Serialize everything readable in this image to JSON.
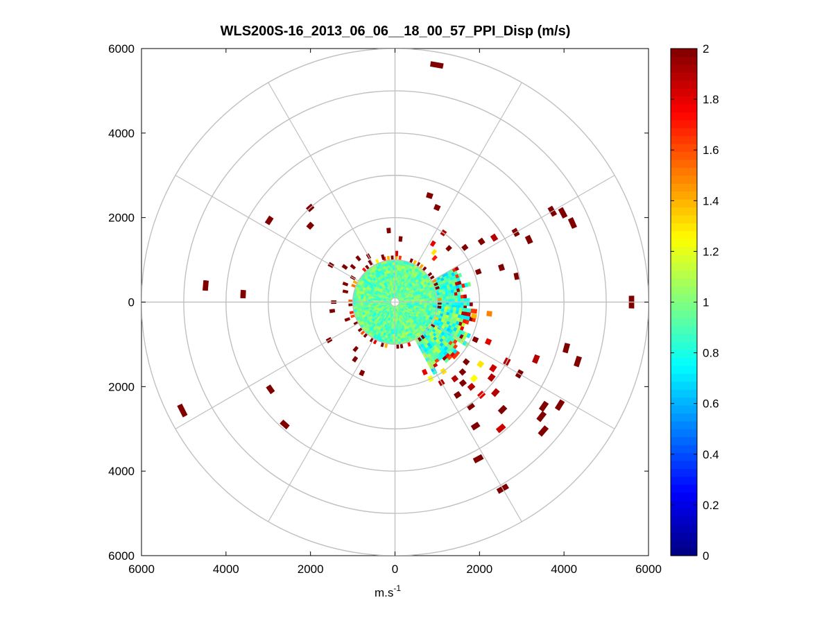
{
  "chart_data": {
    "type": "heatmap",
    "subtype": "polar-ppi",
    "title": "WLS200S-16_2013_06_06__18_00_57_PPI_Disp (m/s)",
    "xlabel": "m.s",
    "xlabel_superscript": "-1",
    "ylabel": "",
    "xlim": [
      -6000,
      6000
    ],
    "ylim": [
      -6000,
      6000
    ],
    "x_ticks": [
      -6000,
      -4000,
      -2000,
      0,
      2000,
      4000,
      6000
    ],
    "x_tick_labels": [
      "6000",
      "4000",
      "2000",
      "0",
      "2000",
      "4000",
      "6000"
    ],
    "y_ticks": [
      6000,
      4000,
      2000,
      0,
      -2000,
      -4000,
      -6000
    ],
    "y_tick_labels": [
      "6000",
      "4000",
      "2000",
      "0",
      "2000",
      "4000",
      "6000"
    ],
    "range_rings": [
      1000,
      2000,
      3000,
      4000,
      5000,
      6000
    ],
    "spokes_deg": [
      0,
      30,
      60,
      90,
      120,
      150,
      180,
      210,
      240,
      270,
      300,
      330
    ],
    "colorbar": {
      "min": 0,
      "max": 2,
      "colormap": "jet",
      "ticks": [
        0,
        0.2,
        0.4,
        0.6,
        0.8,
        1,
        1.2,
        1.4,
        1.6,
        1.8,
        2
      ],
      "tick_labels": [
        "0",
        "0.2",
        "0.4",
        "0.6",
        "0.8",
        "1",
        "1.2",
        "1.4",
        "1.6",
        "1.8",
        "2"
      ]
    },
    "inner_region": {
      "r_min": 100,
      "r_max": 1000,
      "value_base": 0.95,
      "value_spread": 0.15
    },
    "blob_east": {
      "az_min": 60,
      "az_max": 95,
      "r_min": 1000,
      "r_max": 1800,
      "value_base": 0.85,
      "value_spread": 0.2
    },
    "blob_southeast": {
      "az_min": 95,
      "az_max": 150,
      "r_min": 900,
      "r_max": 2000,
      "value_base": 0.9,
      "value_spread": 0.25
    },
    "cells": [
      {
        "az": 10,
        "r": 5700,
        "v": 2
      },
      {
        "az": 18,
        "r": 2650,
        "v": 2
      },
      {
        "az": 24,
        "r": 2450,
        "v": 2
      },
      {
        "az": 35,
        "r": 2000,
        "v": 1.9
      },
      {
        "az": 33,
        "r": 1650,
        "v": 1.8
      },
      {
        "az": 38,
        "r": 1500,
        "v": 1.3
      },
      {
        "az": 42,
        "r": 1400,
        "v": 1.7
      },
      {
        "az": 45,
        "r": 1800,
        "v": 2
      },
      {
        "az": 52,
        "r": 2100,
        "v": 2
      },
      {
        "az": 55,
        "r": 2500,
        "v": 2
      },
      {
        "az": 57,
        "r": 2800,
        "v": 1.9
      },
      {
        "az": 60,
        "r": 3300,
        "v": 2
      },
      {
        "az": 60,
        "r": 4300,
        "v": 2
      },
      {
        "az": 62,
        "r": 4500,
        "v": 2
      },
      {
        "az": 65,
        "r": 3500,
        "v": 2
      },
      {
        "az": 66,
        "r": 4600,
        "v": 2
      },
      {
        "az": 70,
        "r": 2100,
        "v": 2
      },
      {
        "az": 72,
        "r": 2650,
        "v": 2
      },
      {
        "az": 78,
        "r": 2950,
        "v": 2
      },
      {
        "az": 90,
        "r": 5600,
        "v": 2
      },
      {
        "az": 97,
        "r": 2250,
        "v": 1.5
      },
      {
        "az": 100,
        "r": 1900,
        "v": 1.4
      },
      {
        "az": 105,
        "r": 4200,
        "v": 2
      },
      {
        "az": 108,
        "r": 4550,
        "v": 2
      },
      {
        "az": 112,
        "r": 3600,
        "v": 1.9
      },
      {
        "az": 113,
        "r": 2400,
        "v": 1.8
      },
      {
        "az": 115,
        "r": 2100,
        "v": 2
      },
      {
        "az": 118,
        "r": 3000,
        "v": 1.9
      },
      {
        "az": 120,
        "r": 3400,
        "v": 2
      },
      {
        "az": 122,
        "r": 4600,
        "v": 2
      },
      {
        "az": 124,
        "r": 2800,
        "v": 1.85
      },
      {
        "az": 125,
        "r": 4300,
        "v": 2
      },
      {
        "az": 126,
        "r": 2500,
        "v": 1.3
      },
      {
        "az": 128,
        "r": 2900,
        "v": 1.9
      },
      {
        "az": 128,
        "r": 4400,
        "v": 2
      },
      {
        "az": 130,
        "r": 2200,
        "v": 2
      },
      {
        "az": 131,
        "r": 4650,
        "v": 2
      },
      {
        "az": 132,
        "r": 3200,
        "v": 1.9
      },
      {
        "az": 134,
        "r": 2600,
        "v": 1.25
      },
      {
        "az": 135,
        "r": 3600,
        "v": 2
      },
      {
        "az": 136,
        "r": 2300,
        "v": 2
      },
      {
        "az": 137,
        "r": 3000,
        "v": 1.8
      },
      {
        "az": 138,
        "r": 2700,
        "v": 1.9
      },
      {
        "az": 140,
        "r": 2500,
        "v": 2
      },
      {
        "az": 140,
        "r": 3900,
        "v": 1.85
      },
      {
        "az": 142,
        "r": 2300,
        "v": 1.9
      },
      {
        "az": 144,
        "r": 3050,
        "v": 2
      },
      {
        "az": 145,
        "r": 2000,
        "v": 1.3
      },
      {
        "az": 146,
        "r": 2650,
        "v": 2
      },
      {
        "az": 147,
        "r": 3500,
        "v": 2
      },
      {
        "az": 150,
        "r": 2200,
        "v": 1.9
      },
      {
        "az": 150,
        "r": 5100,
        "v": 2
      },
      {
        "az": 152,
        "r": 4200,
        "v": 2
      },
      {
        "az": 155,
        "r": 2000,
        "v": 1.25
      },
      {
        "az": 157,
        "r": 1800,
        "v": 1.8
      },
      {
        "az": 205,
        "r": 1850,
        "v": 2
      },
      {
        "az": 215,
        "r": 1650,
        "v": 2
      },
      {
        "az": 220,
        "r": 1450,
        "v": 2
      },
      {
        "az": 222,
        "r": 3900,
        "v": 2
      },
      {
        "az": 235,
        "r": 3600,
        "v": 2
      },
      {
        "az": 240,
        "r": 1800,
        "v": 2
      },
      {
        "az": 243,
        "r": 5650,
        "v": 2
      },
      {
        "az": 250,
        "r": 1200,
        "v": 2
      },
      {
        "az": 262,
        "r": 1500,
        "v": 2
      },
      {
        "az": 270,
        "r": 1450,
        "v": 2
      },
      {
        "az": 273,
        "r": 3600,
        "v": 2
      },
      {
        "az": 275,
        "r": 4500,
        "v": 2
      },
      {
        "az": 282,
        "r": 1200,
        "v": 2
      },
      {
        "az": 290,
        "r": 1250,
        "v": 2
      },
      {
        "az": 300,
        "r": 1150,
        "v": 2
      },
      {
        "az": 300,
        "r": 1750,
        "v": 2
      },
      {
        "az": 303,
        "r": 3550,
        "v": 2
      },
      {
        "az": 305,
        "r": 1450,
        "v": 2
      },
      {
        "az": 310,
        "r": 1300,
        "v": 2
      },
      {
        "az": 312,
        "r": 2700,
        "v": 2
      },
      {
        "az": 318,
        "r": 3000,
        "v": 2
      },
      {
        "az": 320,
        "r": 1350,
        "v": 2
      },
      {
        "az": 328,
        "r": 1100,
        "v": 2
      },
      {
        "az": 330,
        "r": 1250,
        "v": 2
      },
      {
        "az": 345,
        "r": 1100,
        "v": 2
      },
      {
        "az": 355,
        "r": 1700,
        "v": 2
      },
      {
        "az": 5,
        "r": 1500,
        "v": 2
      },
      {
        "az": 2,
        "r": 1150,
        "v": 1.85
      }
    ]
  }
}
